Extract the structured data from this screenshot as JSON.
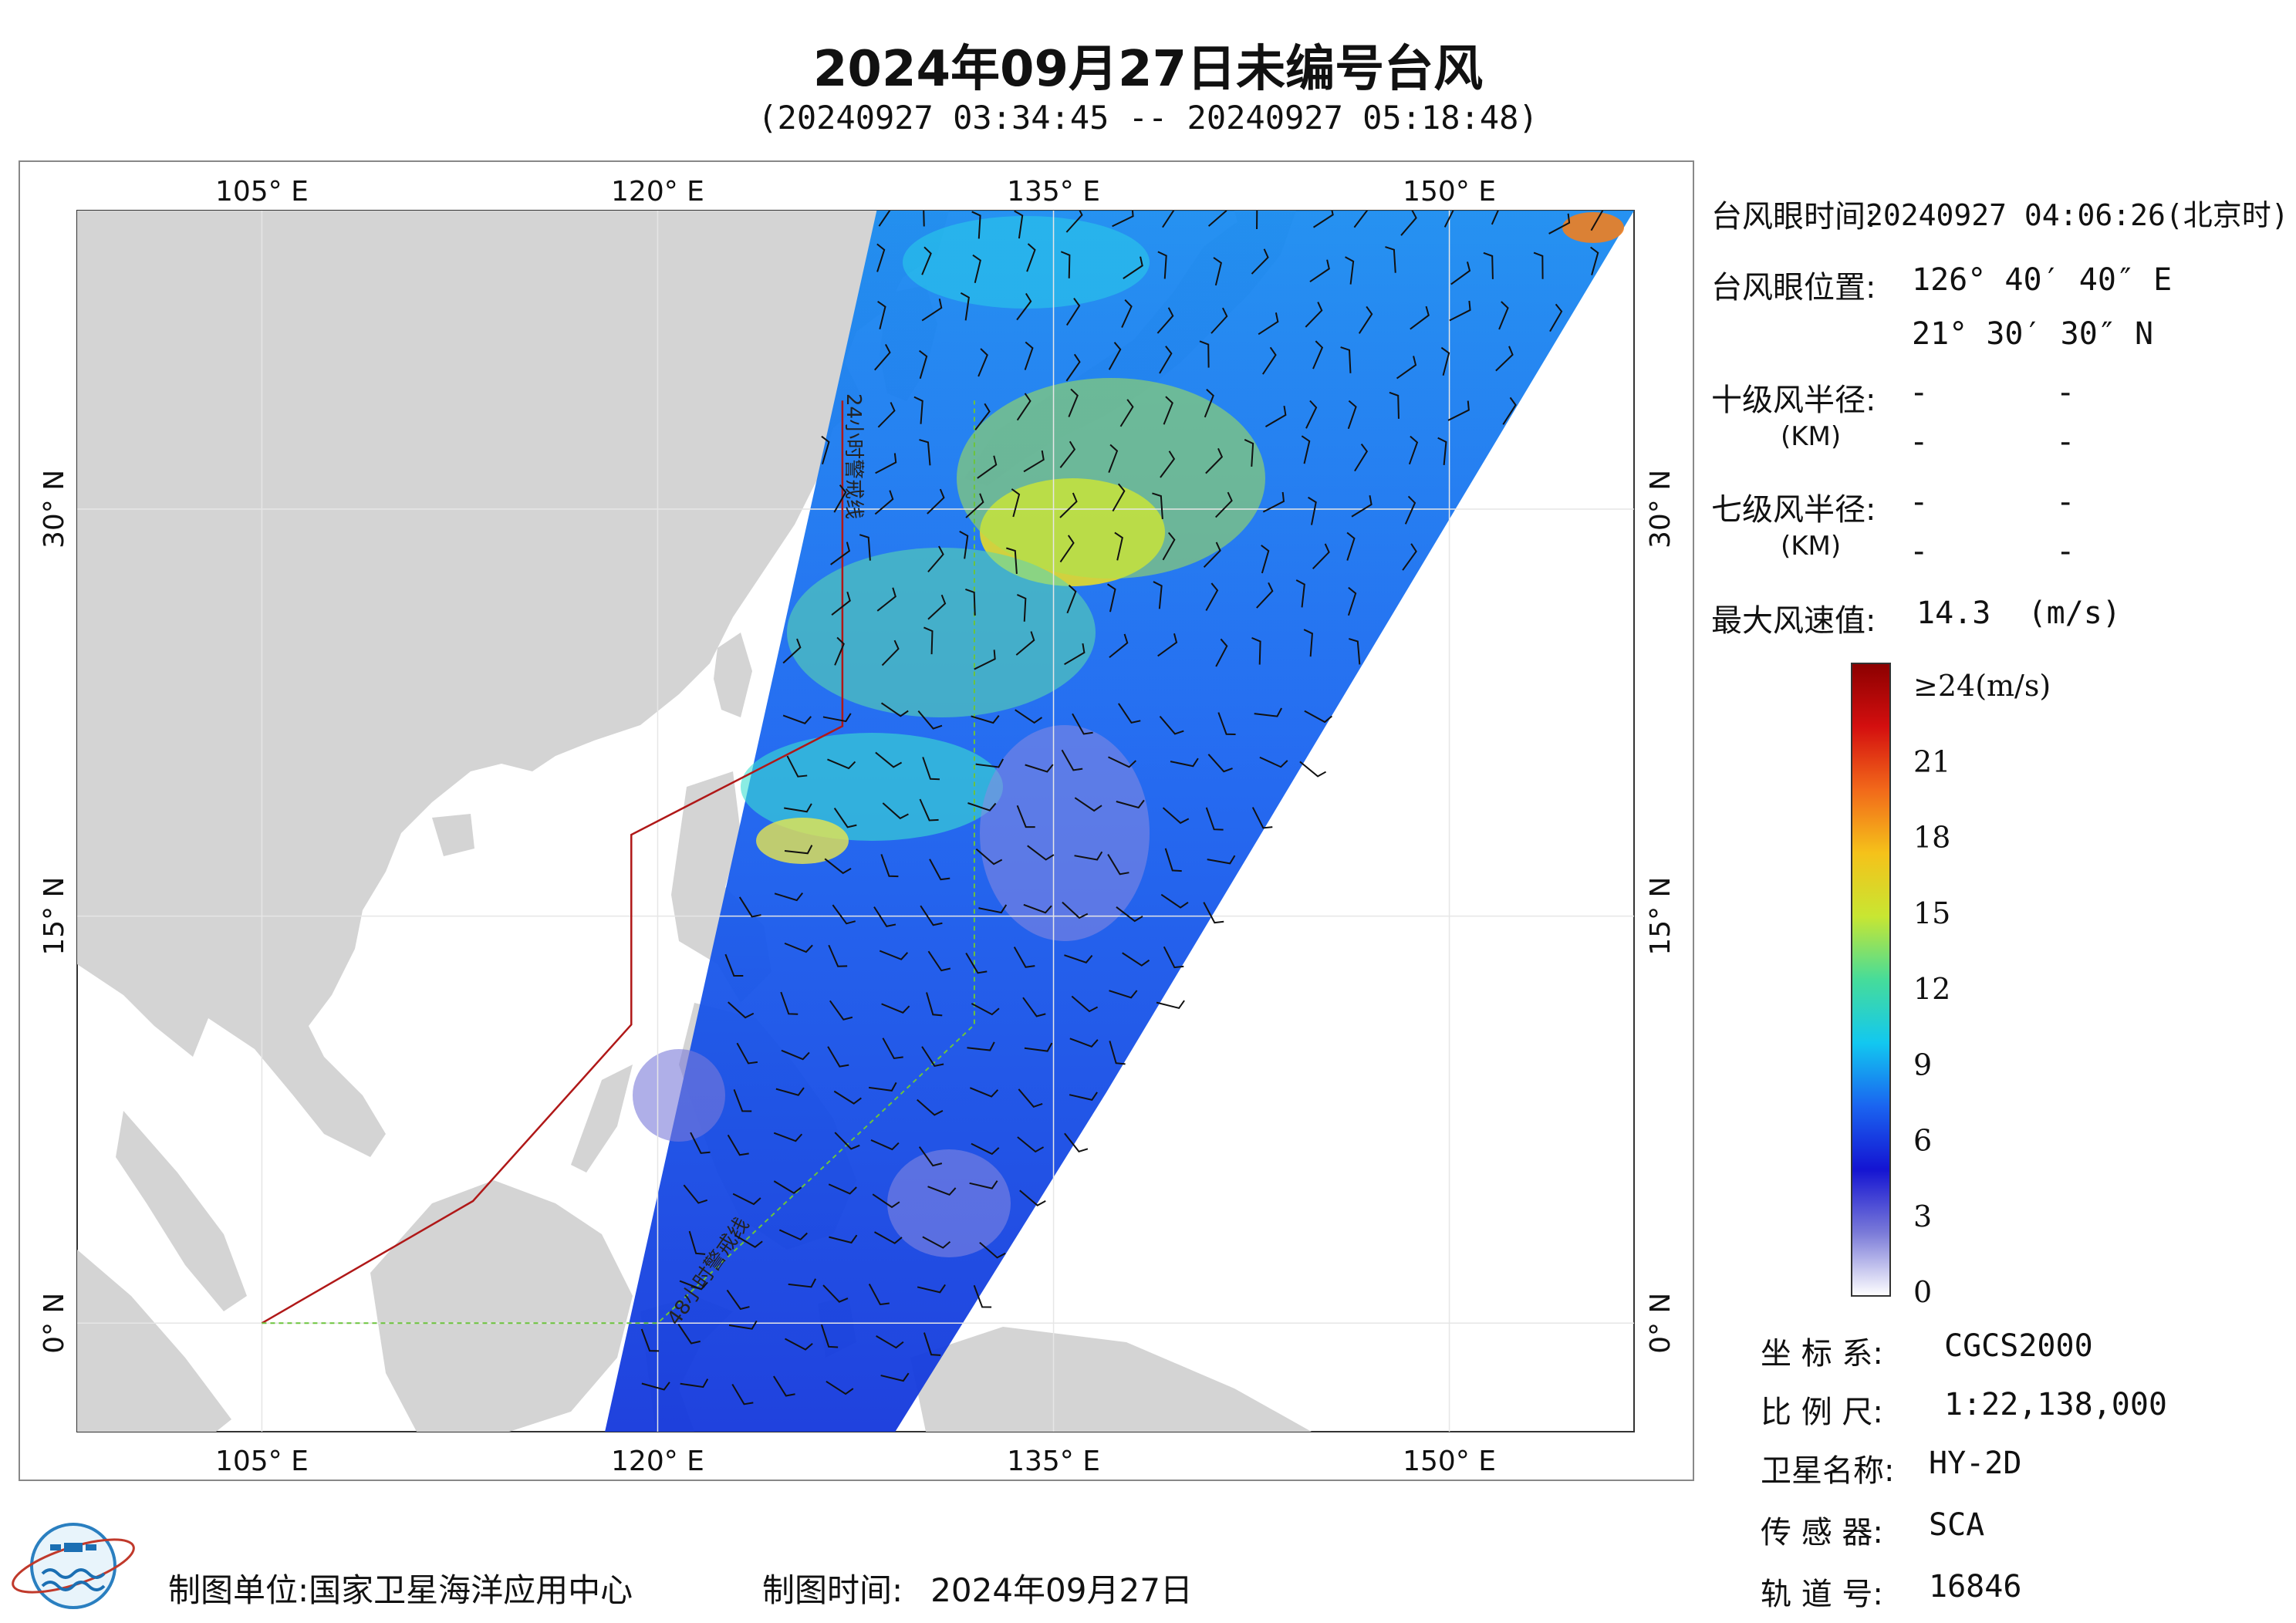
{
  "title": "2024年09月27日未编号台风",
  "subtitle": "(20240927 03:34:45 -- 20240927 05:18:48)",
  "map": {
    "lon_range": [
      98,
      157
    ],
    "lat_range": [
      -4,
      41
    ],
    "lon_ticks": [
      {
        "value": 105,
        "label": "105° E"
      },
      {
        "value": 120,
        "label": "120° E"
      },
      {
        "value": 135,
        "label": "135° E"
      },
      {
        "value": 150,
        "label": "150° E"
      }
    ],
    "lat_ticks": [
      {
        "value": 0,
        "label": "0° N"
      },
      {
        "value": 15,
        "label": "15° N"
      },
      {
        "value": 30,
        "label": "30° N"
      }
    ],
    "warning_24h_label": "24小时警戒线",
    "warning_48h_label": "48小时警戒线",
    "colors": {
      "land": "#d4d4d4",
      "ocean": "#ffffff",
      "grid": "#e6e6e6",
      "warning_24h": "#b01818",
      "warning_48h": "#6cc43c"
    },
    "swath": {
      "corners": [
        [
          128.3,
          41
        ],
        [
          157,
          41
        ],
        [
          137,
          8.5
        ],
        [
          129,
          -4
        ],
        [
          118,
          -4
        ]
      ],
      "max_wind_ms": 14.3
    },
    "warning_24h_line": [
      [
        127,
        34
      ],
      [
        127,
        22
      ],
      [
        119,
        18
      ],
      [
        119,
        11
      ],
      [
        113,
        4.5
      ],
      [
        105,
        0
      ]
    ],
    "warning_48h_line": [
      [
        105,
        0
      ],
      [
        120,
        0
      ],
      [
        132,
        11
      ],
      [
        132,
        15
      ],
      [
        132,
        34
      ]
    ]
  },
  "info": {
    "eye_time_label": "台风眼时间:",
    "eye_time_value": "20240927 04:06:26(北京时)",
    "eye_pos_label": "台风眼位置:",
    "eye_lon": "126° 40′ 40″ E",
    "eye_lat": "21° 30′ 30″ N",
    "r10_label": "十级风半径:",
    "r7_label": "七级风半径:",
    "km_label": "(KM)",
    "dash": "-",
    "max_speed_label": "最大风速值:",
    "max_speed_value": "14.3  (m/s)"
  },
  "colorbar": {
    "labels": [
      "≥24(m/s)",
      "21",
      "18",
      "15",
      "12",
      "9",
      "6",
      "3",
      "0"
    ],
    "stops": [
      "#8b0000",
      "#d40f0f",
      "#f2691a",
      "#f5c21a",
      "#c8e632",
      "#46dc9a",
      "#12c8f0",
      "#1a64f0",
      "#1414d2",
      "#7a7ad8",
      "#ffffff"
    ]
  },
  "meta": {
    "crs_label": "坐 标 系:",
    "crs_value": "CGCS2000",
    "scale_label": "比 例 尺:",
    "scale_value": "1:22,138,000",
    "sat_label": "卫星名称:",
    "sat_value": "HY-2D",
    "sensor_label": "传 感 器:",
    "sensor_value": "SCA",
    "orbit_label": "轨 道 号:",
    "orbit_value": "16846"
  },
  "footer": {
    "unit_label": "制图单位:",
    "unit_value": "国家卫星海洋应用中心",
    "time_label": "制图时间:",
    "time_value": "2024年09月27日"
  }
}
